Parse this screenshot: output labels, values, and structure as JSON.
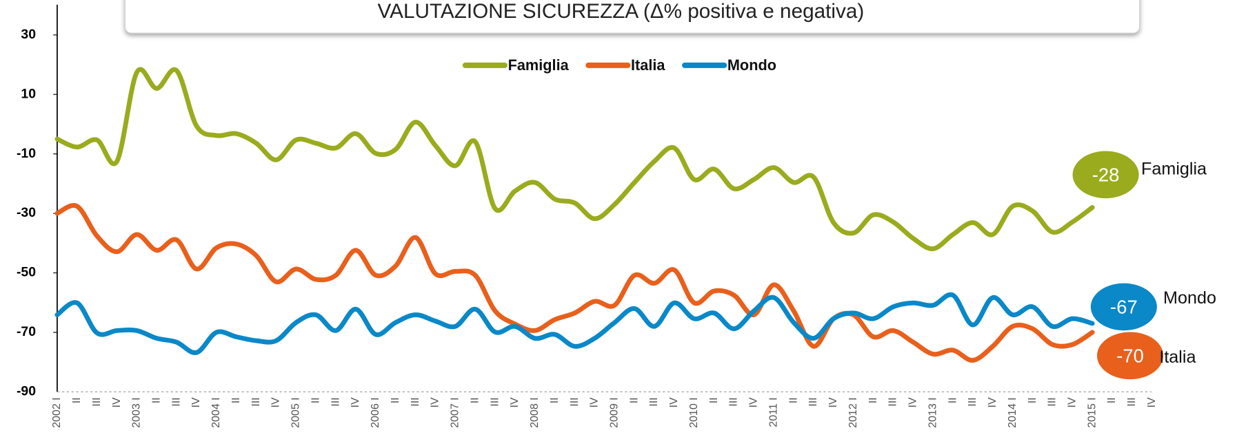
{
  "chart_data": {
    "type": "line",
    "title": "VALUTAZIONE SICUREZZA  (Δ% positiva e negativa)",
    "categories": [
      "2002 I",
      "II",
      "III",
      "IV",
      "2003 I",
      "II",
      "III",
      "IV",
      "2004 I",
      "II",
      "III",
      "IV",
      "2005 I",
      "II",
      "III",
      "IV",
      "2006 I",
      "II",
      "III",
      "IV",
      "2007 I",
      "II",
      "III",
      "IV",
      "2008 I",
      "II",
      "III",
      "IV",
      "2009 I",
      "II",
      "III",
      "IV",
      "2010 I",
      "II",
      "III",
      "IV",
      "2011 I",
      "II",
      "III",
      "IV",
      "2012 I",
      "II",
      "III",
      "IV",
      "2013 I",
      "II",
      "III",
      "IV",
      "2014 I",
      "II",
      "III",
      "IV",
      "2015 I",
      "II",
      "III",
      "IV"
    ],
    "series": [
      {
        "name": "Famiglia",
        "color": "#9aab1e",
        "values": [
          -5,
          -7.7,
          -5.3,
          -12.5,
          17.4,
          12,
          18,
          -0.6,
          -3.8,
          -3.2,
          -6.4,
          -12,
          -5.3,
          -6.4,
          -8,
          -3.2,
          -9.8,
          -8.5,
          0.7,
          -7.2,
          -14,
          -5.9,
          -28.4,
          -22.5,
          -19.6,
          -25.2,
          -26.5,
          -31.8,
          -27,
          -19.6,
          -12.5,
          -8,
          -18.6,
          -15.1,
          -21.7,
          -18.6,
          -14.6,
          -19.6,
          -17.8,
          -33.1,
          -36.6,
          -30.5,
          -32.9,
          -38.4,
          -41.9,
          -37.1,
          -33.1,
          -37.1,
          -27.6,
          -29.2,
          -36.3,
          -32.9,
          -28,
          null,
          null,
          null
        ]
      },
      {
        "name": "Italia",
        "color": "#e8601c",
        "values": [
          -30,
          -27.6,
          -37.6,
          -42.9,
          -37.1,
          -42.4,
          -38.9,
          -48.7,
          -41.6,
          -40.3,
          -44.2,
          -53,
          -48.7,
          -52.2,
          -50.8,
          -42.4,
          -50.8,
          -47.7,
          -38.1,
          -50.3,
          -49.5,
          -50.8,
          -62.8,
          -67.2,
          -69.4,
          -65.7,
          -63.5,
          -59.6,
          -60.9,
          -50.8,
          -53.5,
          -49,
          -60.1,
          -56.1,
          -57.5,
          -64.1,
          -54,
          -62.8,
          -74.7,
          -65.4,
          -64.1,
          -71.5,
          -69.4,
          -73.3,
          -77.3,
          -76,
          -79.4,
          -74.7,
          -68,
          -68.8,
          -74.1,
          -74.1,
          -70,
          null,
          null,
          null
        ]
      },
      {
        "name": "Mondo",
        "color": "#0a88c8",
        "values": [
          -64.1,
          -60.1,
          -70.2,
          -69.4,
          -69.4,
          -72,
          -73.3,
          -76.8,
          -70,
          -71.5,
          -72.8,
          -72.8,
          -66.7,
          -64.1,
          -69.4,
          -62.2,
          -70.7,
          -66.7,
          -64.1,
          -66.2,
          -68,
          -62.2,
          -69.9,
          -68,
          -72,
          -70.7,
          -74.7,
          -72,
          -66.7,
          -62,
          -68,
          -60.1,
          -65.4,
          -63.5,
          -68.8,
          -62.8,
          -58.3,
          -66.7,
          -72,
          -65.4,
          -63.5,
          -65.4,
          -61.4,
          -60.1,
          -60.9,
          -57.5,
          -67.5,
          -58.3,
          -64.1,
          -61.4,
          -68,
          -65.4,
          -67,
          null,
          null,
          null
        ]
      }
    ],
    "ylim": [
      -90,
      40
    ],
    "yticks": [
      -90,
      -70,
      -50,
      -30,
      -10,
      10,
      30
    ],
    "legend": "top"
  }
}
